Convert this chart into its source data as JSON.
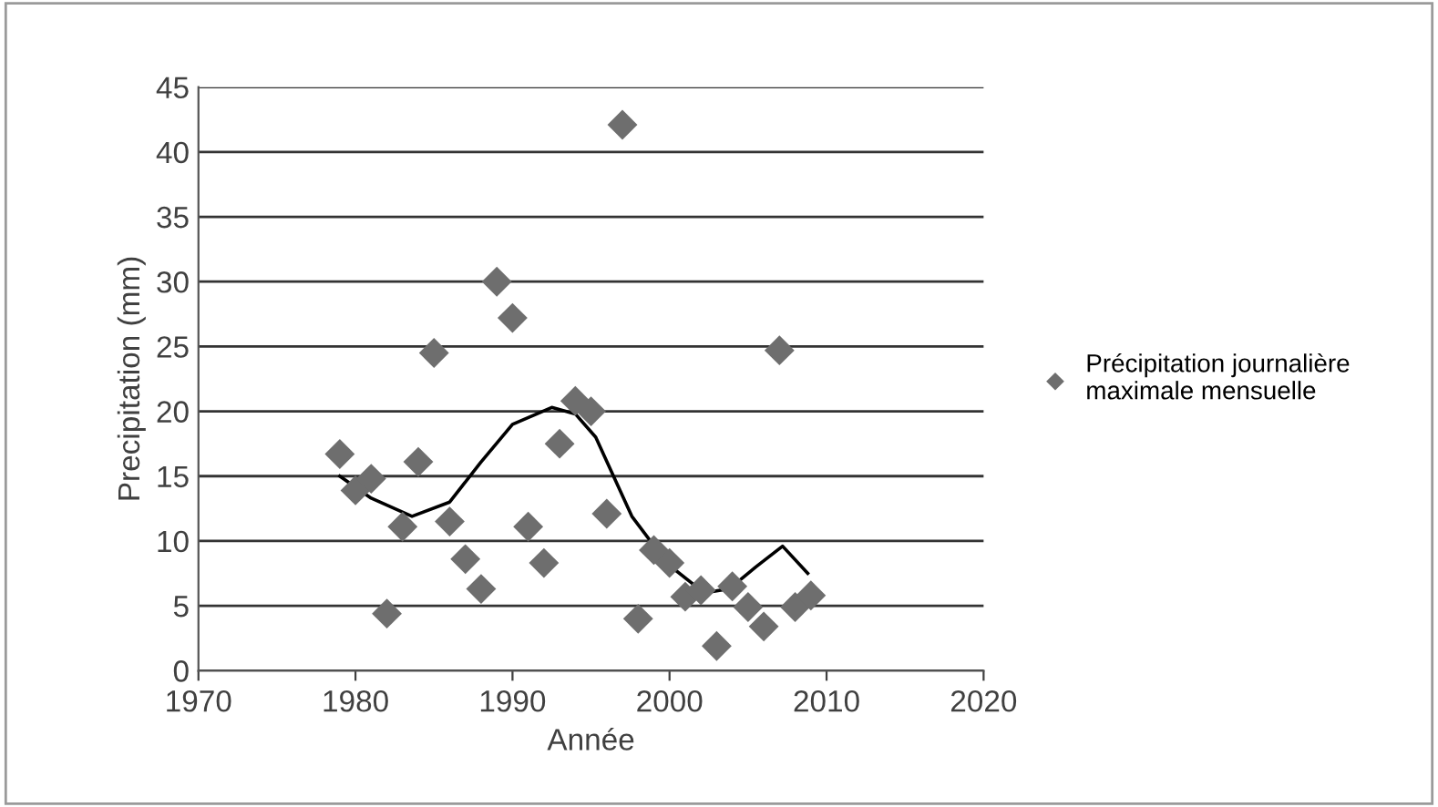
{
  "chart_data": {
    "type": "scatter",
    "xlabel": "Année",
    "ylabel": "Precipitation (mm)",
    "xlim": [
      1970,
      2020
    ],
    "xticks": [
      1970,
      1980,
      1990,
      2000,
      2010,
      2020
    ],
    "ylim": [
      0,
      45
    ],
    "yticks": [
      0,
      5,
      10,
      15,
      20,
      25,
      30,
      35,
      40,
      45
    ],
    "grid": "y",
    "legend": "right",
    "marker": "diamond",
    "series": [
      {
        "name": "Précipitation journalière maximale mensuelle",
        "color": "#6e6e6e",
        "x": [
          1979,
          1980,
          1981,
          1982,
          1983,
          1984,
          1985,
          1986,
          1987,
          1988,
          1989,
          1990,
          1991,
          1992,
          1993,
          1994,
          1995,
          1996,
          1997,
          1998,
          1999,
          2000,
          2001,
          2002,
          2003,
          2004,
          2005,
          2006,
          2007,
          2008,
          2009
        ],
        "values": [
          16.7,
          13.9,
          14.8,
          4.4,
          11.1,
          16.1,
          24.5,
          11.5,
          8.6,
          6.3,
          30.0,
          27.2,
          11.1,
          8.3,
          17.5,
          20.8,
          20.0,
          12.1,
          42.1,
          4.0,
          9.3,
          8.3,
          5.7,
          6.2,
          1.9,
          6.5,
          4.9,
          3.4,
          24.7,
          4.9,
          5.8
        ]
      },
      {
        "color": "#000000",
        "type": "line",
        "marker": "none",
        "line_style": "solid",
        "x": [
          1979,
          1981,
          1983.6,
          1986,
          1988,
          1990,
          1992.5,
          1994,
          1995.3,
          1997.6,
          1999.9,
          2002.2,
          2003.8,
          2005.5,
          2007.2,
          2008.8
        ],
        "values": [
          15.0,
          13.3,
          11.9,
          13.0,
          16.1,
          19.0,
          20.3,
          19.8,
          18.0,
          11.9,
          8.2,
          6.0,
          6.3,
          8.0,
          9.6,
          7.5
        ]
      }
    ]
  }
}
